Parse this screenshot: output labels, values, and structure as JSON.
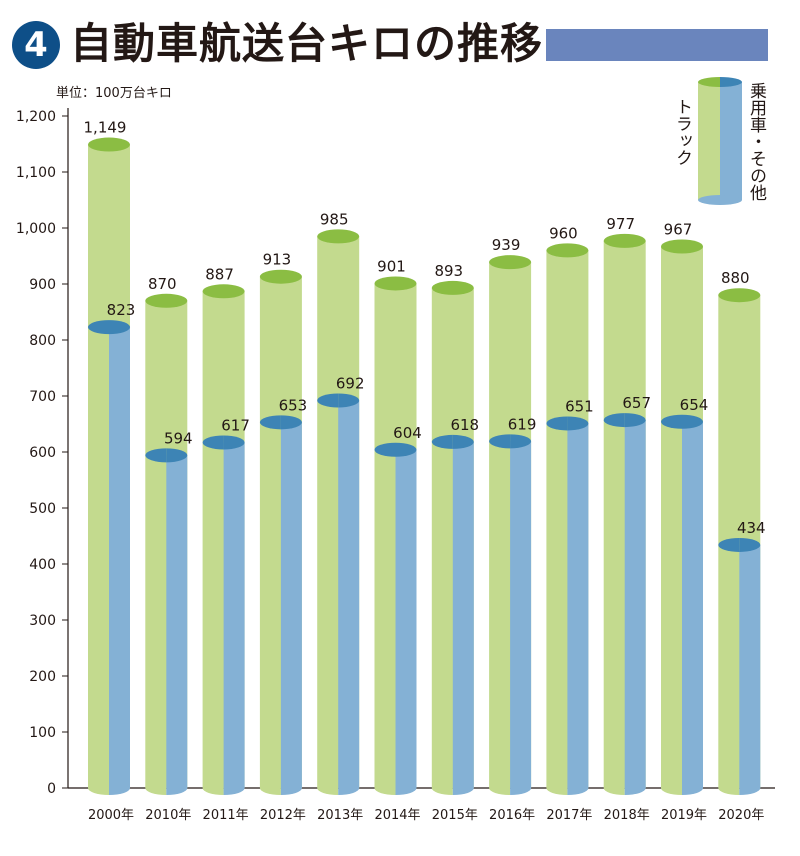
{
  "header": {
    "badge_number": "4",
    "title": "自動車航送台キロの推移",
    "accent_color": "#6a85bd"
  },
  "unit_label": "単位：100万台キロ",
  "legend": {
    "right_label": "乗用車・その他",
    "left_label": "トラック"
  },
  "colors": {
    "truck": "#c3da8e",
    "truck_top": "#8bbd43",
    "car": "#84b1d5",
    "car_top": "#3d84b5",
    "car_dark": "#6b9cc4"
  },
  "chart_data": {
    "type": "bar",
    "categories": [
      "2000年",
      "2010年",
      "2011年",
      "2012年",
      "2013年",
      "2014年",
      "2015年",
      "2016年",
      "2017年",
      "2018年",
      "2019年",
      "2020年"
    ],
    "series": [
      {
        "name": "トラック",
        "values": [
          1149,
          870,
          887,
          913,
          985,
          901,
          893,
          939,
          960,
          977,
          967,
          880
        ],
        "labels": [
          "1,149",
          "870",
          "887",
          "913",
          "985",
          "901",
          "893",
          "939",
          "960",
          "977",
          "967",
          "880"
        ]
      },
      {
        "name": "乗用車・その他",
        "values": [
          823,
          594,
          617,
          653,
          692,
          604,
          618,
          619,
          651,
          657,
          654,
          434
        ],
        "labels": [
          "823",
          "594",
          "617",
          "653",
          "692",
          "604",
          "618",
          "619",
          "651",
          "657",
          "654",
          "434"
        ]
      }
    ],
    "yticks": [
      "0",
      "100",
      "200",
      "300",
      "400",
      "500",
      "600",
      "700",
      "800",
      "900",
      "1,000",
      "1,100",
      "1,200"
    ],
    "ylim": [
      0,
      1200
    ],
    "grid": false,
    "legend_position": "top-right"
  }
}
